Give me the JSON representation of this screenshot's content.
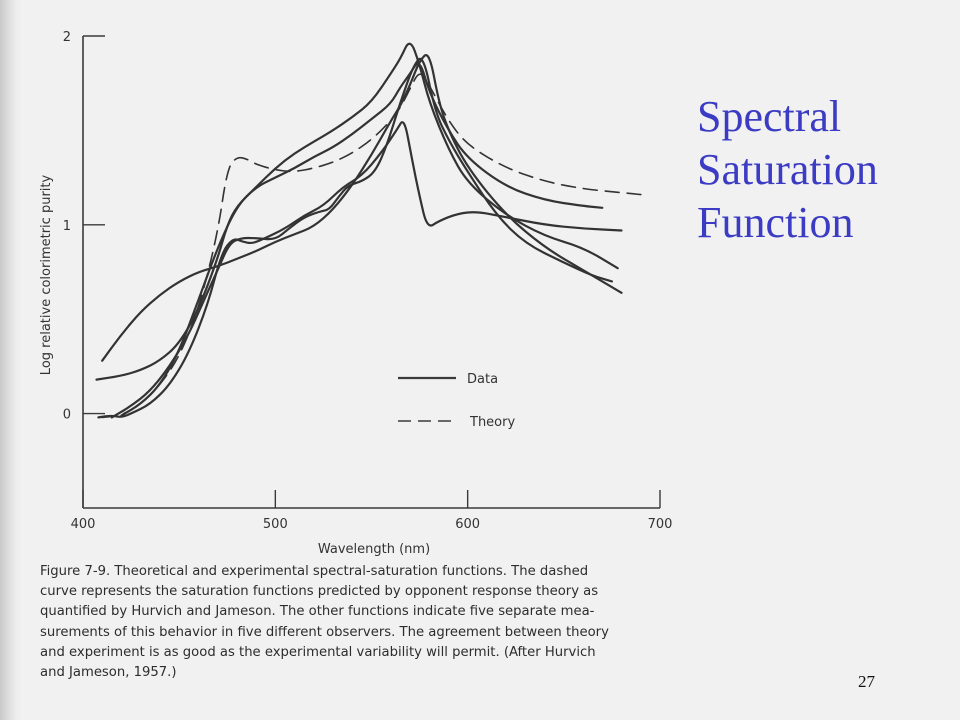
{
  "slide": {
    "title_lines": [
      "Spectral",
      "Saturation",
      "Function"
    ],
    "page_number": "27",
    "title_color": "#3b3bc4"
  },
  "figure_caption": {
    "lines": [
      "Figure 7-9.   Theoretical and experimental spectral-saturation functions. The dashed",
      "curve represents the saturation functions predicted by opponent response theory as",
      "quantified by Hurvich and Jameson. The other functions indicate five separate mea-",
      "surements of this behavior in five different observers. The agreement between theory",
      "and experiment is as good as the experimental variability will permit. (After Hurvich",
      "and Jameson, 1957.)"
    ]
  },
  "chart_data": {
    "type": "line",
    "title": "",
    "xlabel": "Wavelength  (nm)",
    "ylabel": "Log relative colorimetric purity",
    "xlim": [
      400,
      700
    ],
    "ylim": [
      -0.5,
      2
    ],
    "x_ticks": [
      400,
      500,
      600,
      700
    ],
    "y_ticks": [
      0,
      1,
      2
    ],
    "grid": false,
    "legend": {
      "placement": "inside-lower-center",
      "entries": [
        {
          "label": "Data",
          "style": "solid"
        },
        {
          "label": "Theory",
          "style": "dashed"
        }
      ]
    },
    "series": [
      {
        "style": "dashed",
        "points": [
          [
            410,
            -0.02
          ],
          [
            420,
            -0.01
          ],
          [
            430,
            0.05
          ],
          [
            440,
            0.15
          ],
          [
            450,
            0.3
          ],
          [
            460,
            0.55
          ],
          [
            470,
            0.95
          ],
          [
            475,
            1.3
          ],
          [
            480,
            1.36
          ],
          [
            485,
            1.35
          ],
          [
            490,
            1.32
          ],
          [
            500,
            1.29
          ],
          [
            510,
            1.28
          ],
          [
            520,
            1.3
          ],
          [
            530,
            1.33
          ],
          [
            540,
            1.38
          ],
          [
            550,
            1.45
          ],
          [
            560,
            1.55
          ],
          [
            565,
            1.62
          ],
          [
            570,
            1.72
          ],
          [
            575,
            1.82
          ],
          [
            580,
            1.74
          ],
          [
            590,
            1.55
          ],
          [
            600,
            1.42
          ],
          [
            620,
            1.3
          ],
          [
            640,
            1.23
          ],
          [
            660,
            1.19
          ],
          [
            680,
            1.17
          ],
          [
            690,
            1.16
          ]
        ]
      },
      {
        "style": "solid",
        "points": [
          [
            408,
            -0.02
          ],
          [
            415,
            -0.01
          ],
          [
            420,
            -0.02
          ],
          [
            425,
            0.0
          ],
          [
            435,
            0.05
          ],
          [
            445,
            0.15
          ],
          [
            455,
            0.32
          ],
          [
            465,
            0.58
          ],
          [
            472,
            0.85
          ],
          [
            478,
            0.93
          ],
          [
            483,
            0.91
          ],
          [
            488,
            0.9
          ],
          [
            495,
            0.93
          ],
          [
            505,
            0.98
          ],
          [
            515,
            1.05
          ],
          [
            525,
            1.1
          ],
          [
            535,
            1.2
          ],
          [
            545,
            1.26
          ],
          [
            555,
            1.38
          ],
          [
            563,
            1.5
          ],
          [
            567,
            1.57
          ],
          [
            571,
            1.35
          ],
          [
            575,
            1.15
          ],
          [
            579,
            0.98
          ],
          [
            585,
            1.02
          ],
          [
            595,
            1.06
          ],
          [
            605,
            1.07
          ],
          [
            620,
            1.04
          ],
          [
            640,
            1.0
          ],
          [
            660,
            0.98
          ],
          [
            680,
            0.97
          ]
        ]
      },
      {
        "style": "solid",
        "points": [
          [
            407,
            0.18
          ],
          [
            420,
            0.2
          ],
          [
            430,
            0.23
          ],
          [
            440,
            0.28
          ],
          [
            450,
            0.37
          ],
          [
            460,
            0.55
          ],
          [
            470,
            0.82
          ],
          [
            475,
            1.0
          ],
          [
            480,
            1.1
          ],
          [
            490,
            1.2
          ],
          [
            500,
            1.25
          ],
          [
            510,
            1.3
          ],
          [
            520,
            1.36
          ],
          [
            530,
            1.41
          ],
          [
            540,
            1.48
          ],
          [
            550,
            1.56
          ],
          [
            560,
            1.64
          ],
          [
            565,
            1.73
          ],
          [
            570,
            1.8
          ],
          [
            575,
            1.88
          ],
          [
            580,
            1.7
          ],
          [
            590,
            1.5
          ],
          [
            600,
            1.35
          ],
          [
            620,
            1.2
          ],
          [
            640,
            1.13
          ],
          [
            660,
            1.1
          ],
          [
            670,
            1.09
          ]
        ]
      },
      {
        "style": "solid",
        "points": [
          [
            410,
            0.28
          ],
          [
            420,
            0.42
          ],
          [
            430,
            0.54
          ],
          [
            440,
            0.63
          ],
          [
            450,
            0.7
          ],
          [
            460,
            0.75
          ],
          [
            470,
            0.78
          ],
          [
            480,
            0.82
          ],
          [
            490,
            0.86
          ],
          [
            500,
            0.91
          ],
          [
            510,
            0.95
          ],
          [
            520,
            0.99
          ],
          [
            530,
            1.08
          ],
          [
            540,
            1.21
          ],
          [
            550,
            1.37
          ],
          [
            560,
            1.55
          ],
          [
            565,
            1.63
          ],
          [
            570,
            1.74
          ],
          [
            575,
            1.87
          ],
          [
            580,
            1.92
          ],
          [
            585,
            1.65
          ],
          [
            590,
            1.5
          ],
          [
            600,
            1.3
          ],
          [
            620,
            1.05
          ],
          [
            640,
            0.88
          ],
          [
            660,
            0.76
          ],
          [
            680,
            0.64
          ]
        ]
      },
      {
        "style": "solid",
        "points": [
          [
            415,
            -0.02
          ],
          [
            425,
            0.04
          ],
          [
            435,
            0.12
          ],
          [
            445,
            0.25
          ],
          [
            455,
            0.42
          ],
          [
            462,
            0.58
          ],
          [
            470,
            0.76
          ],
          [
            476,
            0.9
          ],
          [
            482,
            0.93
          ],
          [
            490,
            0.93
          ],
          [
            500,
            0.92
          ],
          [
            507,
            0.98
          ],
          [
            515,
            1.04
          ],
          [
            523,
            1.07
          ],
          [
            528,
            1.08
          ],
          [
            533,
            1.15
          ],
          [
            538,
            1.21
          ],
          [
            545,
            1.23
          ],
          [
            552,
            1.28
          ],
          [
            558,
            1.42
          ],
          [
            565,
            1.65
          ],
          [
            572,
            1.85
          ],
          [
            577,
            1.9
          ],
          [
            583,
            1.6
          ],
          [
            590,
            1.45
          ],
          [
            600,
            1.28
          ],
          [
            615,
            1.05
          ],
          [
            630,
            0.9
          ],
          [
            650,
            0.8
          ],
          [
            665,
            0.73
          ],
          [
            675,
            0.7
          ]
        ]
      },
      {
        "style": "solid",
        "points": [
          [
            420,
            -0.01
          ],
          [
            430,
            0.05
          ],
          [
            440,
            0.15
          ],
          [
            450,
            0.33
          ],
          [
            460,
            0.6
          ],
          [
            470,
            0.88
          ],
          [
            480,
            1.1
          ],
          [
            490,
            1.2
          ],
          [
            500,
            1.3
          ],
          [
            510,
            1.38
          ],
          [
            520,
            1.44
          ],
          [
            530,
            1.5
          ],
          [
            540,
            1.57
          ],
          [
            550,
            1.65
          ],
          [
            560,
            1.8
          ],
          [
            565,
            1.88
          ],
          [
            570,
            1.99
          ],
          [
            575,
            1.85
          ],
          [
            580,
            1.65
          ],
          [
            590,
            1.4
          ],
          [
            600,
            1.22
          ],
          [
            620,
            1.05
          ],
          [
            640,
            0.94
          ],
          [
            660,
            0.88
          ],
          [
            678,
            0.77
          ]
        ]
      }
    ]
  }
}
